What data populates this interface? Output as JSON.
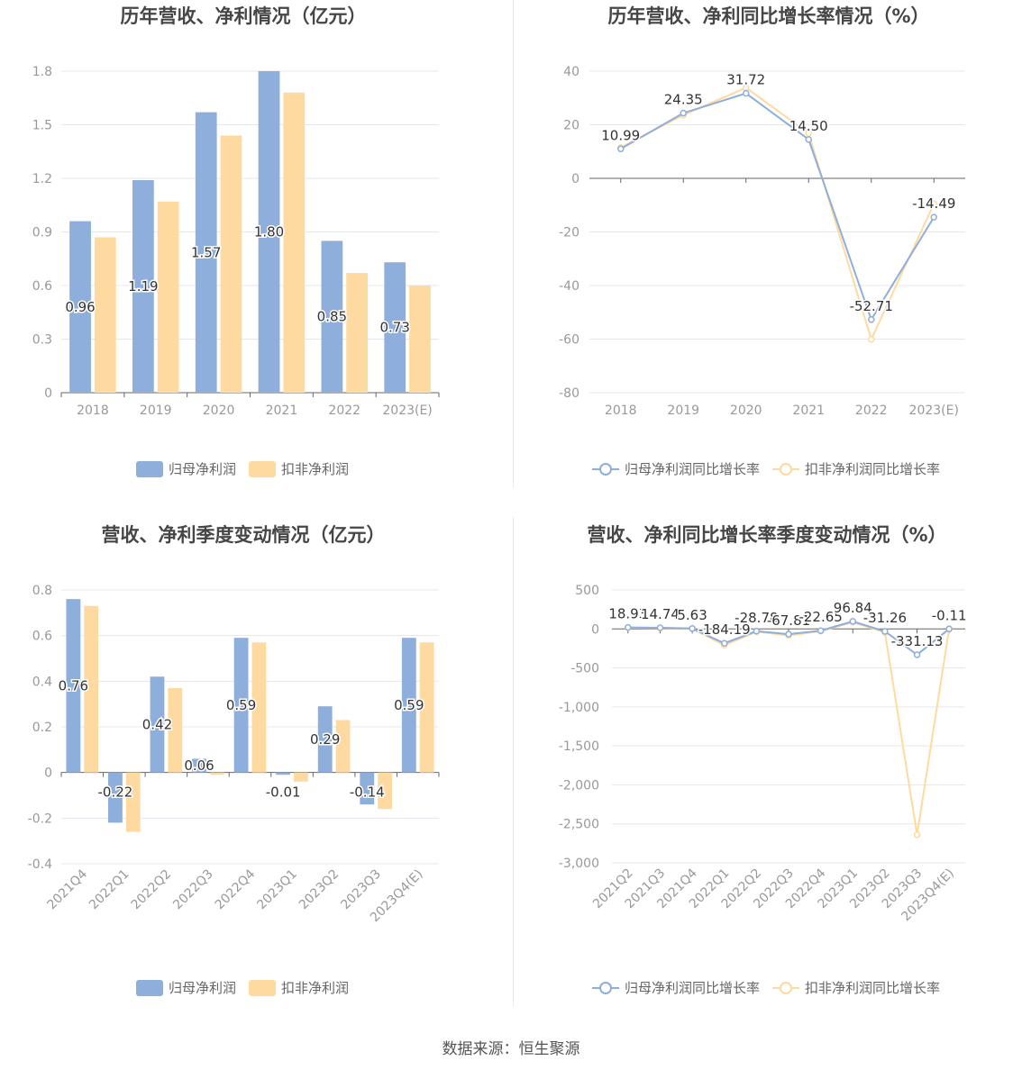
{
  "footer": "数据来源：恒生聚源",
  "colors": {
    "blue": "#8eaedb",
    "orange": "#ffdaa0",
    "grid": "#e6e6ef",
    "axis": "#666666",
    "tick_text": "#999999",
    "title": "#464646",
    "label": "#333333"
  },
  "chart_data": [
    {
      "id": "annual-profit",
      "type": "bar",
      "title": "历年营收、净利情况（亿元）",
      "categories": [
        "2018",
        "2019",
        "2020",
        "2021",
        "2022",
        "2023(E)"
      ],
      "series": [
        {
          "name": "归母净利润",
          "values": [
            0.96,
            1.19,
            1.57,
            1.8,
            0.85,
            0.73
          ],
          "labels": [
            "0.96",
            "1.19",
            "1.57",
            "1.80",
            "0.85",
            "0.73"
          ]
        },
        {
          "name": "扣非净利润",
          "values": [
            0.87,
            1.07,
            1.44,
            1.68,
            0.67,
            0.6
          ]
        }
      ],
      "yticks": [
        "0",
        "0.3",
        "0.6",
        "0.9",
        "1.2",
        "1.5",
        "1.8"
      ],
      "ylim": [
        0,
        1.8
      ],
      "legend": "bottom-center"
    },
    {
      "id": "annual-growth",
      "type": "line",
      "title": "历年营收、净利同比增长率情况（%）",
      "categories": [
        "2018",
        "2019",
        "2020",
        "2021",
        "2022",
        "2023(E)"
      ],
      "series": [
        {
          "name": "归母净利润同比增长率",
          "values": [
            10.99,
            24.35,
            31.72,
            14.5,
            -52.71,
            -14.49
          ],
          "labels": [
            "10.99",
            "24.35",
            "31.72",
            "14.50",
            "-52.71",
            "-14.49"
          ]
        },
        {
          "name": "扣非净利润同比增长率",
          "values": [
            11.5,
            23.6,
            33.8,
            16.8,
            -60.1,
            -9.5
          ]
        }
      ],
      "yticks": [
        "-80",
        "-60",
        "-40",
        "-20",
        "0",
        "20",
        "40"
      ],
      "ylim": [
        -80,
        40
      ],
      "legend": "bottom-center"
    },
    {
      "id": "quarterly-profit",
      "type": "bar",
      "title": "营收、净利季度变动情况（亿元）",
      "categories": [
        "2021Q4",
        "2022Q1",
        "2022Q2",
        "2022Q3",
        "2022Q4",
        "2023Q1",
        "2023Q2",
        "2023Q3",
        "2023Q4(E)"
      ],
      "series": [
        {
          "name": "归母净利润",
          "values": [
            0.76,
            -0.22,
            0.42,
            0.06,
            0.59,
            -0.01,
            0.29,
            -0.14,
            0.59
          ],
          "labels": [
            "0.76",
            "-0.22",
            "0.42",
            "0.06",
            "0.59",
            "-0.01",
            "0.29",
            "-0.14",
            "0.59"
          ]
        },
        {
          "name": "扣非净利润",
          "values": [
            0.73,
            -0.26,
            0.37,
            -0.01,
            0.57,
            -0.04,
            0.23,
            -0.16,
            0.57
          ]
        }
      ],
      "yticks": [
        "-0.4",
        "-0.2",
        "0",
        "0.2",
        "0.4",
        "0.6",
        "0.8"
      ],
      "ylim": [
        -0.4,
        0.8
      ],
      "legend": "bottom-center"
    },
    {
      "id": "quarterly-growth",
      "type": "line",
      "title": "营收、净利同比增长率季度变动情况（%）",
      "categories": [
        "2021Q2",
        "2021Q3",
        "2021Q4",
        "2022Q1",
        "2022Q2",
        "2022Q3",
        "2022Q4",
        "2023Q1",
        "2023Q2",
        "2023Q3",
        "2023Q4(E)"
      ],
      "series": [
        {
          "name": "归母净利润同比增长率",
          "values": [
            18.93,
            14.74,
            5.63,
            -184.19,
            -28.78,
            -67.81,
            -22.65,
            96.84,
            -31.26,
            -331.13,
            -0.11
          ],
          "labels": [
            "18.93",
            "14.74",
            "5.63",
            "-184.19",
            "-28.78",
            "-67.81",
            "-22.65",
            "96.84",
            "-31.26",
            "-331.13",
            "-0.11"
          ]
        },
        {
          "name": "扣非净利润同比增长率",
          "values": [
            15,
            12,
            4,
            -210,
            -35,
            -85,
            -28,
            85,
            -45,
            -2640,
            2
          ]
        }
      ],
      "yticks": [
        "-3,000",
        "-2,500",
        "-2,000",
        "-1,500",
        "-1,000",
        "-500",
        "0",
        "500"
      ],
      "ylim": [
        -3000,
        500
      ],
      "legend": "bottom-center"
    }
  ]
}
